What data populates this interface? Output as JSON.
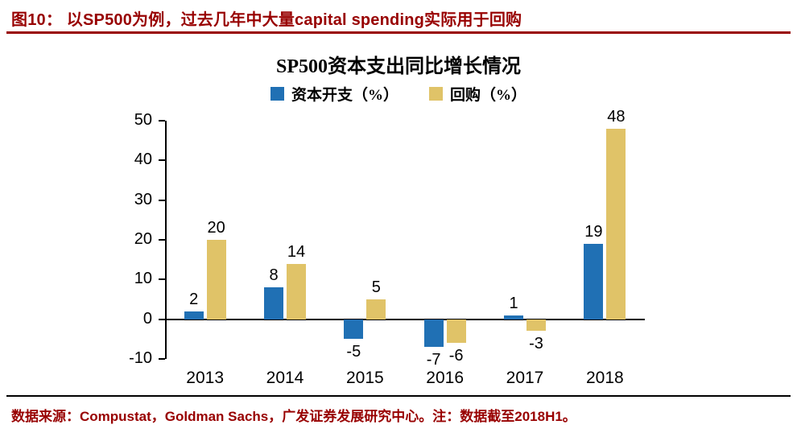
{
  "header": {
    "title": "图10： 以SP500为例，过去几年中大量capital spending实际用于回购"
  },
  "footer": {
    "source": "数据来源：Compustat，Goldman Sachs，广发证券发展研究中心。注：数据截至2018H1。"
  },
  "colors": {
    "accent_red": "#980000",
    "capex_blue": "#2070B4",
    "buyback_gold": "#E0C368"
  },
  "chart_data": {
    "type": "bar",
    "title": "SP500资本支出同比增长情况",
    "categories": [
      "2013",
      "2014",
      "2015",
      "2016",
      "2017",
      "2018"
    ],
    "series": [
      {
        "id": "capex",
        "name": "资本开支（%）",
        "color": "#2070B4",
        "values": [
          2,
          8,
          -5,
          -7,
          1,
          19
        ]
      },
      {
        "id": "buyback",
        "name": "回购（%）",
        "color": "#E0C368",
        "values": [
          20,
          14,
          5,
          -6,
          -3,
          48
        ]
      }
    ],
    "xlabel": "",
    "ylabel": "",
    "ylim": [
      -10,
      50
    ],
    "yticks": [
      50,
      40,
      30,
      20,
      10,
      0,
      -10
    ],
    "legend_position": "top",
    "grid": false
  }
}
